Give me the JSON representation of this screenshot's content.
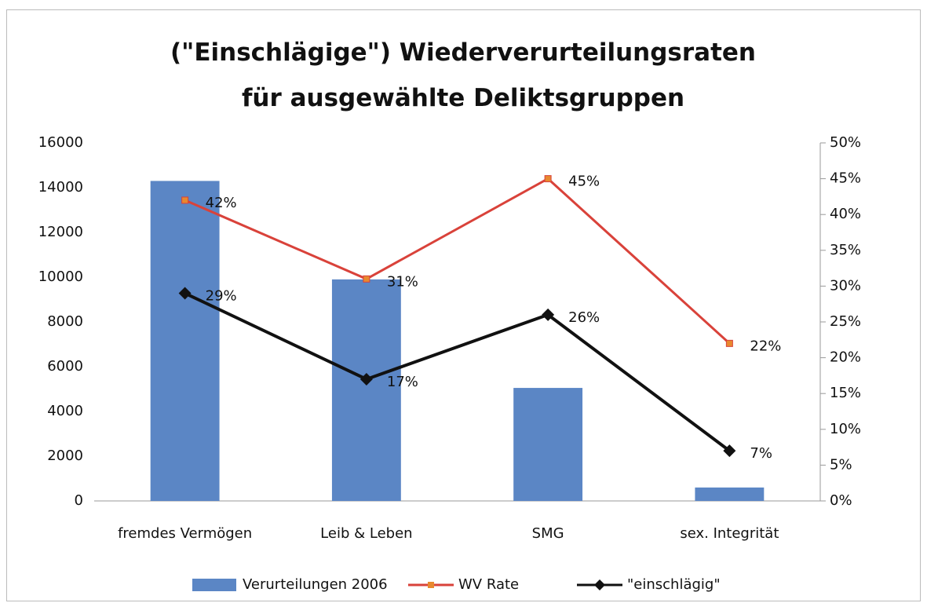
{
  "chart_data": {
    "type": "combo",
    "title": "(\"Einschlägige\") Wiederverurteilungsraten für ausgewählte Deliktsgruppen",
    "categories": [
      "fremdes Vermögen",
      "Leib & Leben",
      "SMG",
      "sex. Integrität"
    ],
    "series": [
      {
        "name": "Verurteilungen 2006",
        "type": "bar",
        "color": "#5b86c5",
        "values": [
          14300,
          9900,
          5050,
          600
        ]
      },
      {
        "name": "WV Rate",
        "type": "line",
        "axis": "y2",
        "color": "#d9423a",
        "marker": "square",
        "marker_color": "#e8892f",
        "values": [
          42,
          31,
          45,
          22
        ],
        "value_labels": [
          "42%",
          "31%",
          "45%",
          "22%"
        ]
      },
      {
        "name": "\"einschlägig\"",
        "type": "line",
        "axis": "y2",
        "color": "#111111",
        "marker": "diamond",
        "marker_color": "#111111",
        "values": [
          29,
          17,
          26,
          7
        ],
        "value_labels": [
          "29%",
          "17%",
          "26%",
          "7%"
        ]
      }
    ],
    "ylim": [
      0,
      16000
    ],
    "yticks": [
      0,
      2000,
      4000,
      6000,
      8000,
      10000,
      12000,
      14000,
      16000
    ],
    "y2lim": [
      0,
      50
    ],
    "y2ticks": [
      {
        "value": 0,
        "label": "0%"
      },
      {
        "value": 5,
        "label": "5%"
      },
      {
        "value": 10,
        "label": "10%"
      },
      {
        "value": 15,
        "label": "15%"
      },
      {
        "value": 20,
        "label": "20%"
      },
      {
        "value": 25,
        "label": "25%"
      },
      {
        "value": 30,
        "label": "30%"
      },
      {
        "value": 35,
        "label": "35%"
      },
      {
        "value": 40,
        "label": "40%"
      },
      {
        "value": 45,
        "label": "45%"
      },
      {
        "value": 50,
        "label": "50%"
      }
    ],
    "legend": "bottom"
  }
}
